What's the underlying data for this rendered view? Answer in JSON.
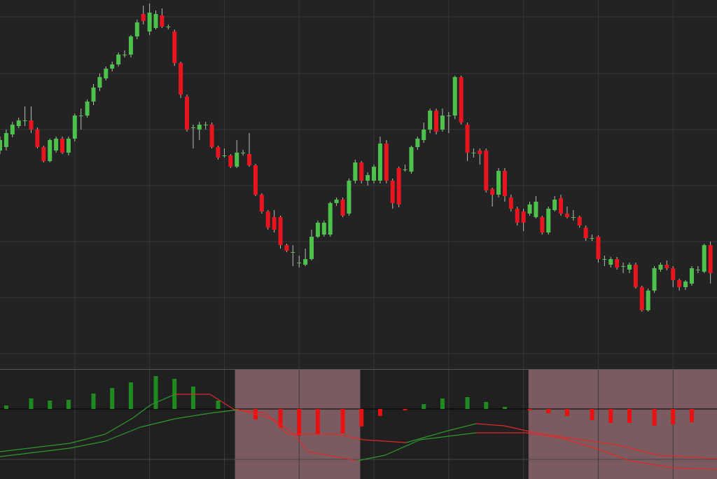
{
  "chart_data": [
    {
      "type": "candlestick",
      "up_color": "#4cc24c",
      "down_color": "#e8141e",
      "open": [
        315,
        320,
        338,
        350,
        358,
        358,
        345,
        320,
        300,
        315,
        332,
        312,
        332,
        365,
        365,
        385,
        405,
        418,
        432,
        438,
        452,
        452,
        478,
        510,
        485,
        490,
        508,
        492,
        485,
        440,
        392,
        348,
        345,
        352,
        352,
        320,
        308,
        308,
        292,
        312,
        310,
        294,
        252,
        228,
        220,
        220,
        180,
        170,
        155,
        152,
        160,
        192,
        195,
        195,
        240,
        245,
        225,
        272,
        298,
        272,
        272,
        272,
        325,
        272,
        290,
        288,
        285,
        320,
        330,
        345,
        372,
        345,
        365,
        365,
        420,
        352,
        312,
        315,
        315,
        260,
        252,
        286,
        248,
        232,
        228,
        225,
        220,
        220,
        198,
        230,
        247,
        225,
        220,
        220,
        205,
        190,
        192,
        160,
        152,
        160,
        150,
        145,
        152,
        120,
        87,
        115,
        145,
        152,
        147,
        130,
        120,
        125,
        145,
        142,
        180
      ],
      "high": [
        335,
        345,
        356,
        362,
        378,
        378,
        348,
        322,
        332,
        335,
        335,
        335,
        368,
        375,
        388,
        410,
        425,
        435,
        442,
        455,
        458,
        480,
        502,
        522,
        525,
        515,
        518,
        495,
        488,
        442,
        395,
        352,
        356,
        356,
        355,
        322,
        318,
        310,
        330,
        316,
        340,
        296,
        254,
        230,
        230,
        222,
        182,
        180,
        165,
        175,
        202,
        215,
        215,
        242,
        248,
        248,
        275,
        302,
        300,
        284,
        295,
        335,
        330,
        275,
        292,
        295,
        322,
        335,
        355,
        375,
        375,
        375,
        370,
        422,
        422,
        355,
        318,
        318,
        318,
        262,
        290,
        290,
        252,
        235,
        232,
        242,
        250,
        222,
        235,
        250,
        252,
        235,
        230,
        222,
        208,
        195,
        194,
        165,
        163,
        163,
        155,
        155,
        155,
        122,
        118,
        150,
        155,
        158,
        150,
        132,
        130,
        150,
        150,
        182,
        185
      ],
      "low": [
        310,
        315,
        334,
        347,
        350,
        340,
        318,
        298,
        298,
        312,
        310,
        308,
        328,
        345,
        362,
        380,
        400,
        415,
        428,
        435,
        448,
        448,
        474,
        495,
        480,
        488,
        490,
        488,
        436,
        390,
        342,
        318,
        330,
        345,
        318,
        302,
        305,
        290,
        290,
        308,
        292,
        250,
        225,
        202,
        198,
        175,
        170,
        150,
        148,
        150,
        158,
        190,
        192,
        192,
        236,
        220,
        222,
        268,
        268,
        265,
        268,
        268,
        268,
        232,
        234,
        285,
        282,
        316,
        326,
        340,
        338,
        342,
        340,
        360,
        352,
        300,
        305,
        295,
        255,
        235,
        248,
        242,
        228,
        208,
        200,
        222,
        218,
        195,
        195,
        228,
        222,
        218,
        215,
        205,
        186,
        186,
        155,
        150,
        148,
        145,
        140,
        140,
        118,
        85,
        85,
        112,
        142,
        144,
        120,
        115,
        116,
        122,
        140,
        140,
        125
      ],
      "close": [
        330,
        340,
        352,
        358,
        358,
        345,
        320,
        300,
        330,
        332,
        312,
        332,
        365,
        365,
        385,
        405,
        420,
        432,
        438,
        452,
        452,
        478,
        498,
        500,
        512,
        510,
        492,
        492,
        440,
        395,
        345,
        348,
        352,
        352,
        320,
        305,
        308,
        292,
        312,
        312,
        294,
        252,
        228,
        205,
        202,
        180,
        172,
        170,
        155,
        160,
        192,
        212,
        212,
        240,
        245,
        222,
        272,
        298,
        272,
        280,
        292,
        325,
        272,
        240,
        238,
        288,
        320,
        332,
        345,
        372,
        342,
        365,
        365,
        420,
        355,
        312,
        312,
        310,
        258,
        252,
        286,
        250,
        232,
        212,
        212,
        238,
        242,
        198,
        232,
        245,
        225,
        220,
        220,
        208,
        190,
        190,
        160,
        160,
        160,
        148,
        150,
        152,
        120,
        87,
        115,
        147,
        152,
        147,
        130,
        120,
        128,
        147,
        145,
        180,
        140
      ],
      "xlim": [
        0,
        115.05
      ],
      "ylim": [
        3,
        530
      ],
      "xticks": [
        12,
        24,
        36,
        48,
        60,
        72,
        84,
        96,
        108
      ],
      "yticks": [
        506,
        425,
        345,
        265,
        185,
        105,
        25
      ],
      "grid": true
    },
    {
      "type": "histogram-oscillator",
      "x": [
        1,
        5,
        8,
        11,
        15,
        18,
        21,
        25,
        28,
        31,
        35,
        38,
        41,
        45,
        48,
        51,
        55,
        58,
        61,
        65,
        68,
        71,
        75,
        78,
        81,
        85,
        88,
        91,
        95,
        98,
        101,
        105,
        108,
        111
      ],
      "values": [
        5,
        15,
        12,
        13,
        22,
        30,
        38,
        47,
        43,
        32,
        12,
        -2,
        -15,
        -27,
        -38,
        -36,
        -35,
        -25,
        -10,
        -2,
        7,
        15,
        17,
        10,
        3,
        -2,
        -6,
        -10,
        -16,
        -20,
        -20,
        -24,
        -22,
        -19
      ],
      "positive_color": "#1f8a1f",
      "negative_color": "#e81010",
      "lines": [
        {
          "x": [
            0,
            11.2,
            16.9,
            21.3,
            24.2,
            28.1,
            33.7,
            37.6,
            42.7,
            46.1,
            53.9,
            58.4,
            65.2,
            71.9,
            76.4,
            80.9,
            85.4,
            91,
            98.9,
            105.6,
            115
          ],
          "values": [
            -61,
            -49,
            -36,
            -13,
            6,
            21,
            21,
            -1,
            -6,
            -36,
            -36,
            -44,
            -48,
            -31,
            -21,
            -24,
            -33,
            -41,
            -51,
            -66,
            -71
          ]
        },
        {
          "x": [
            0,
            11.2,
            16.9,
            22.5,
            28.1,
            33.7,
            38.2,
            43.8,
            47.2,
            49.4,
            53.9,
            57.3,
            61.8,
            67.4,
            76.4,
            84.3,
            89.9,
            95.5,
            101.1,
            107.9,
            115
          ],
          "values": [
            -68,
            -56,
            -46,
            -26,
            -14,
            -6,
            -1,
            -14,
            -36,
            -61,
            -68,
            -74,
            -66,
            -44,
            -34,
            -34,
            -41,
            -56,
            -74,
            -84,
            -86
          ]
        }
      ],
      "rising_color": "#2f9a2f",
      "falling_color": "#e02828",
      "shaded_ranges": [
        [
          37.7,
          57.8
        ],
        [
          84.8,
          115.05
        ]
      ],
      "shade_color": "#7a5c60",
      "xlim": [
        0,
        115.05
      ],
      "ylim": [
        -100,
        56
      ],
      "xticks": [
        12,
        24,
        36,
        48,
        60,
        72,
        84,
        96,
        108
      ],
      "yticks": [
        0,
        -72
      ],
      "grid": true
    }
  ]
}
